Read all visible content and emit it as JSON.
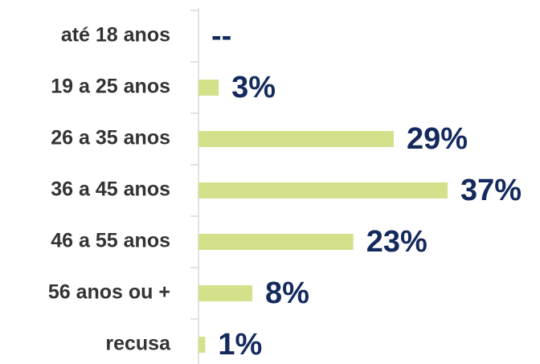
{
  "chart_data": {
    "type": "bar",
    "orientation": "horizontal",
    "categories": [
      "até 18 anos",
      "19 a 25 anos",
      "26 a 35 anos",
      "36 a 45 anos",
      "46 a 55 anos",
      "56 anos ou +",
      "recusa"
    ],
    "values": [
      null,
      3,
      29,
      37,
      23,
      8,
      1
    ],
    "value_labels": [
      "--",
      "3%",
      "29%",
      "37%",
      "23%",
      "8%",
      "1%"
    ],
    "color": "#d4e08a"
  }
}
